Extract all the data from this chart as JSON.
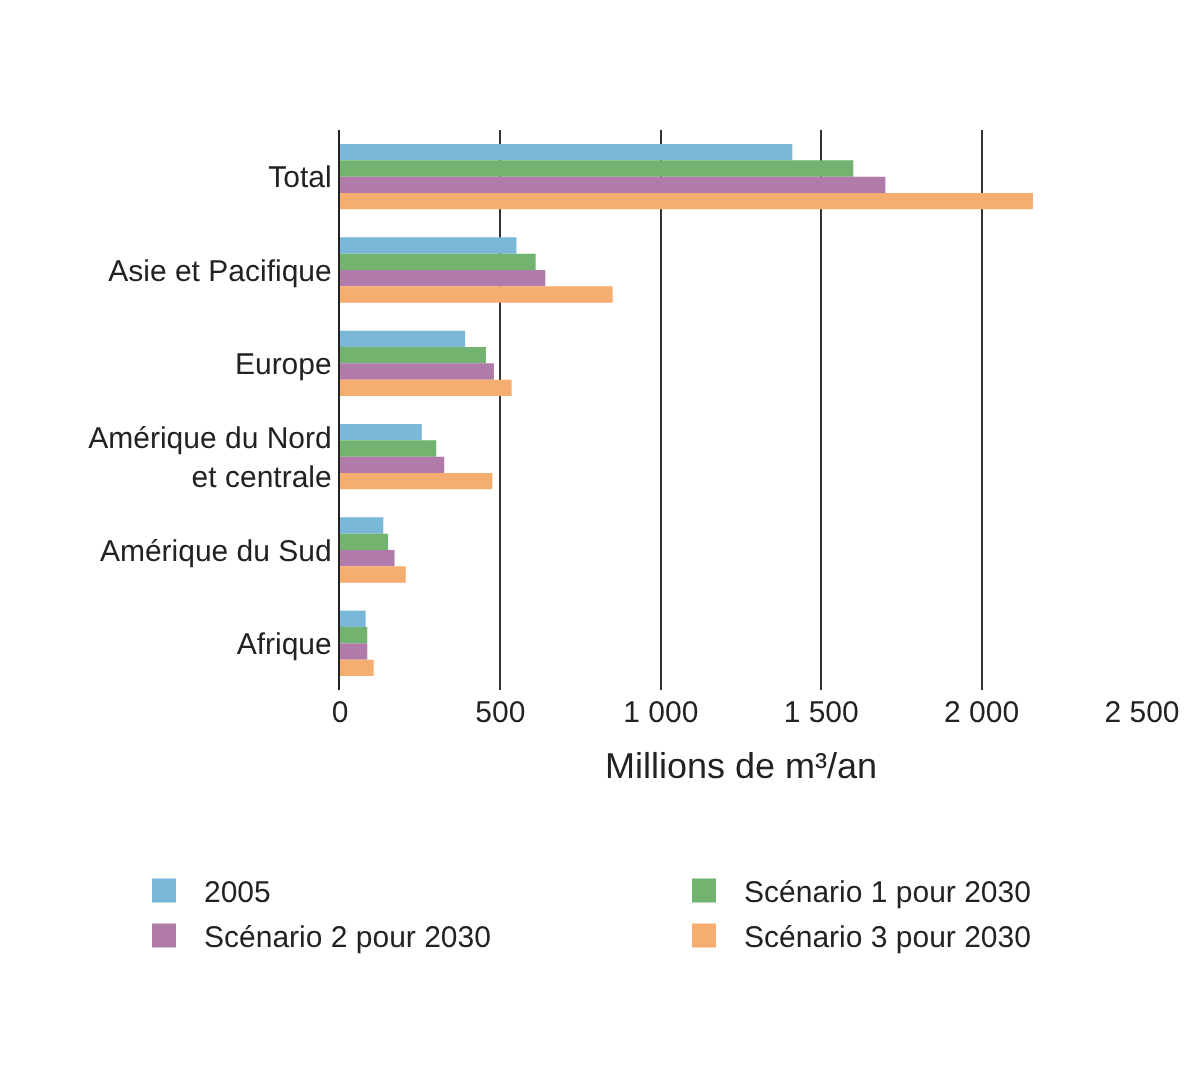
{
  "chart_data": {
    "type": "bar",
    "orientation": "horizontal",
    "xlabel": "Millions de m³/an",
    "categories": [
      "Total",
      "Asie et Pacifique",
      "Europe",
      "Amérique du Nord\net centrale",
      "Amérique du Sud",
      "Afrique"
    ],
    "series": [
      {
        "name": "2005",
        "color": "#7ab8d9",
        "values": [
          1410,
          550,
          390,
          255,
          135,
          80
        ]
      },
      {
        "name": "Scénario 1 pour 2030",
        "color": "#72b36f",
        "values": [
          1600,
          610,
          455,
          300,
          150,
          85
        ]
      },
      {
        "name": "Scénario 2 pour 2030",
        "color": "#b07ba8",
        "values": [
          1700,
          640,
          480,
          325,
          170,
          85
        ]
      },
      {
        "name": "Scénario 3 pour 2030",
        "color": "#f5ad70",
        "values": [
          2160,
          850,
          535,
          475,
          205,
          105
        ]
      }
    ],
    "xlim": [
      0,
      2500
    ],
    "xticks": [
      0,
      500,
      {
        "value": 1000,
        "label": "1 000"
      },
      {
        "value": 1500,
        "label": "1 500"
      },
      {
        "value": 2000,
        "label": "2 000"
      },
      {
        "value": 2500,
        "label": "2 500"
      }
    ],
    "grid": "x",
    "legend": "bottom"
  }
}
